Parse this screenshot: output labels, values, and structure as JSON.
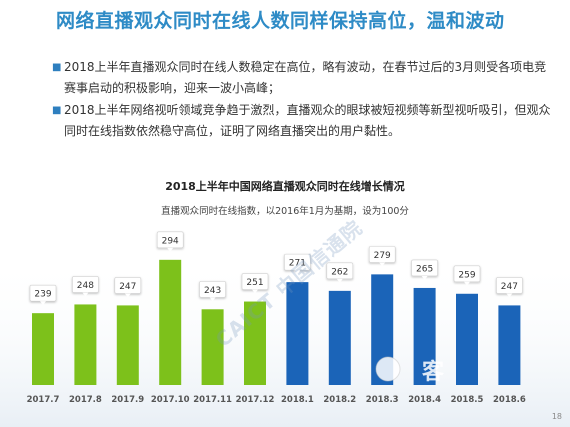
{
  "slide": {
    "title": "网络直播观众同时在线人数同样保持高位，温和波动",
    "bullets": [
      "2018上半年直播观众同时在线人数稳定在高位，略有波动，在春节过后的3月则受各项电竞赛事启动的积极影响，迎来一波小高峰；",
      "2018上半年网络视听领域竞争趋于激烈，直播观众的眼球被短视频等新型视听吸引，但观众同时在线指数依然稳守高位，证明了网络直播突出的用户黏性。"
    ],
    "page_number": "18",
    "watermark": "CAICT 中国信通院",
    "logo_text": "客"
  },
  "colors": {
    "title": "#2e8bc6",
    "series_2017": "#7dc11b",
    "series_2018": "#1b64b8",
    "callout": "#ffffff"
  },
  "chart_data": {
    "type": "bar",
    "title": "2018上半年中国网络直播观众同时在线增长情况",
    "subtitle": "直播观众同时在线指数，以2016年1月为基期，设为100分",
    "categories": [
      "2017.7",
      "2017.8",
      "2017.9",
      "2017.10",
      "2017.11",
      "2017.12",
      "2018.1",
      "2018.2",
      "2018.3",
      "2018.4",
      "2018.5",
      "2018.6"
    ],
    "values": [
      239,
      248,
      247,
      294,
      243,
      251,
      271,
      262,
      279,
      265,
      259,
      247
    ],
    "value_labels": [
      "239",
      "248",
      "247",
      "294",
      "243",
      "251",
      "271",
      "262",
      "279",
      "265",
      "259",
      "247"
    ],
    "ylim": [
      0,
      300
    ],
    "grid": false,
    "legend": "none"
  }
}
